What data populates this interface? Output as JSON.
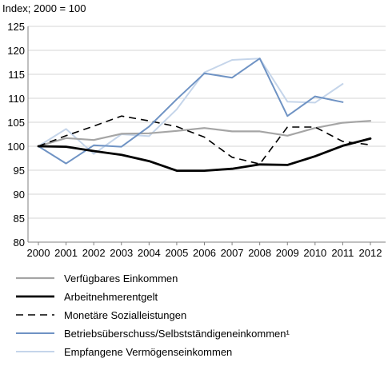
{
  "chart_data": {
    "type": "line",
    "title": "",
    "ylabel": "Index; 2000 = 100",
    "xlabel": "",
    "ylim": [
      80,
      125
    ],
    "yticks": [
      80,
      85,
      90,
      95,
      100,
      105,
      110,
      115,
      120,
      125
    ],
    "categories": [
      "2000",
      "2001",
      "2002",
      "2003",
      "2004",
      "2005",
      "2006",
      "2007",
      "2008",
      "2009",
      "2010",
      "2011",
      "2012"
    ],
    "legend_position": "bottom",
    "grid": true,
    "series": [
      {
        "name": "Verfügbares Einkommen",
        "color": "#a5a5a5",
        "dash": "solid",
        "width": 2.2,
        "values": [
          100,
          101.7,
          101.3,
          102.6,
          102.7,
          103.2,
          103.8,
          103.1,
          103.1,
          102.2,
          103.8,
          104.9,
          105.3
        ]
      },
      {
        "name": "Arbeitnehmerentgelt",
        "color": "#000000",
        "dash": "solid",
        "width": 2.8,
        "values": [
          100,
          99.9,
          99.0,
          98.2,
          96.9,
          94.9,
          94.9,
          95.3,
          96.2,
          96.1,
          97.9,
          100.1,
          101.6
        ]
      },
      {
        "name": "Monetäre Sozialleistungen",
        "color": "#000000",
        "dash": "dashed",
        "width": 1.6,
        "values": [
          100,
          102.2,
          104.2,
          106.3,
          105.3,
          104.1,
          101.9,
          97.7,
          96.3,
          104.0,
          104.0,
          101.0,
          100.3
        ]
      },
      {
        "name": "Betriebsüberschuss/Selbstständigeneinkommen¹",
        "color": "#6f93c4",
        "dash": "solid",
        "width": 2.0,
        "values": [
          100,
          96.4,
          100.2,
          99.9,
          104.1,
          109.8,
          115.2,
          114.3,
          118.3,
          106.3,
          110.4,
          109.2,
          null
        ]
      },
      {
        "name": "Empfangene Vermögenseinkommen",
        "color": "#c5d5ea",
        "dash": "solid",
        "width": 2.0,
        "values": [
          100,
          103.6,
          98.4,
          102.5,
          102.1,
          107.7,
          115.4,
          118.0,
          118.3,
          109.3,
          109.1,
          113.0,
          null
        ]
      }
    ]
  }
}
